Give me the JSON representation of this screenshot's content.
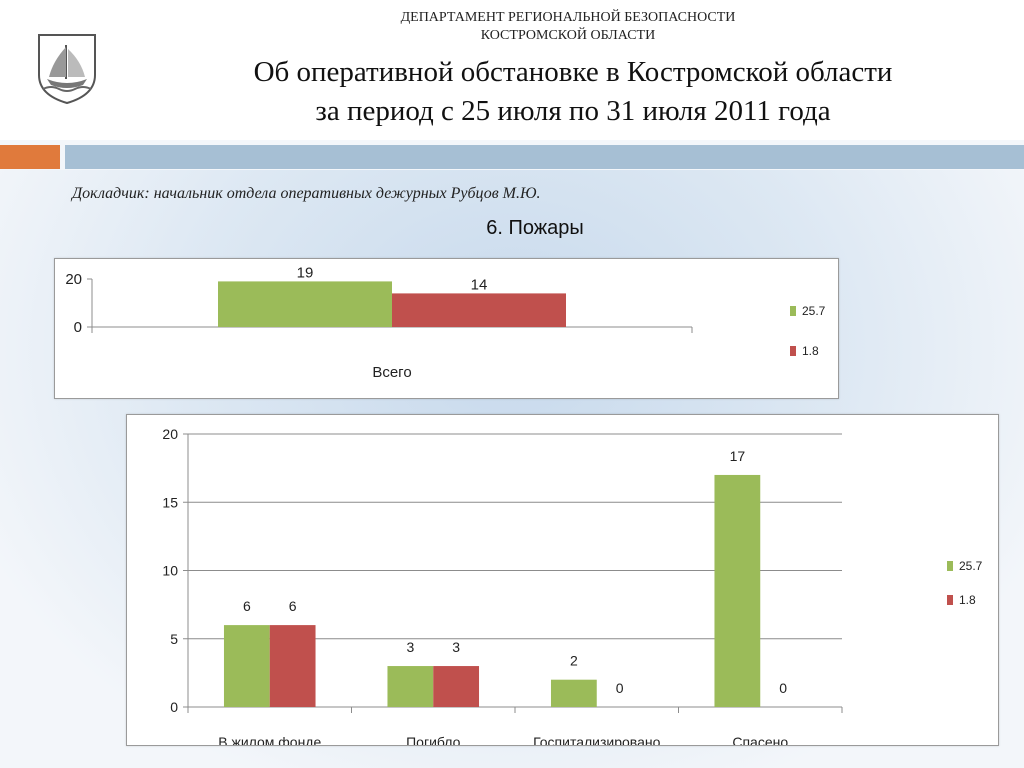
{
  "header": {
    "dept_line1": "ДЕПАРТАМЕНТ РЕГИОНАЛЬНОЙ БЕЗОПАСНОСТИ",
    "dept_line2": "КОСТРОМСКОЙ ОБЛАСТИ",
    "title_line1": "Об оперативной обстановке в Костромской области",
    "title_line2": "за период с 25 июля по 31 июля 2011 года"
  },
  "reporter": "Докладчик: начальник отдела оперативных дежурных Рубцов М.Ю.",
  "section_title": "6. Пожары",
  "colors": {
    "series1": "#9bbb59",
    "series2": "#c0504d",
    "accent_orange": "#e07a3c",
    "accent_blue": "#a6bfd4"
  },
  "chart_data": [
    {
      "type": "bar",
      "categories": [
        "Всего"
      ],
      "series": [
        {
          "name": "25.7",
          "values": [
            19
          ]
        },
        {
          "name": "1.8",
          "values": [
            14
          ]
        }
      ],
      "y_ticks": [
        "0",
        "20"
      ],
      "ylim": [
        0,
        20
      ],
      "legend": "right"
    },
    {
      "type": "bar",
      "categories": [
        "В жилом фонде",
        "Погибло",
        "Госпитализировано",
        "Спасено"
      ],
      "series": [
        {
          "name": "25.7",
          "values": [
            6,
            3,
            2,
            17
          ]
        },
        {
          "name": "1.8",
          "values": [
            6,
            3,
            0,
            0
          ]
        }
      ],
      "y_ticks": [
        "0",
        "5",
        "10",
        "15",
        "20"
      ],
      "ylim": [
        0,
        20
      ],
      "grid": true,
      "legend": "right"
    }
  ]
}
